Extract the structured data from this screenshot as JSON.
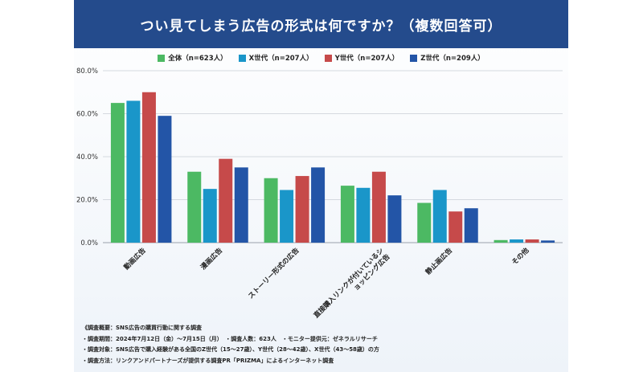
{
  "chart_data": {
    "type": "bar",
    "title": "つい見てしまう広告の形式は何ですか？（複数回答可）",
    "categories": [
      "動画広告",
      "漫画広告",
      "ストーリー形式の広告",
      "直接購入リンクが付いているショッピング広告",
      "静止画広告",
      "その他"
    ],
    "series": [
      {
        "name": "全体（n=623人）",
        "color": "#4cb963",
        "values": [
          65.0,
          33.0,
          30.0,
          26.5,
          18.5,
          1.2
        ]
      },
      {
        "name": "X世代（n=207人）",
        "color": "#1a96c9",
        "values": [
          66.0,
          25.0,
          24.5,
          25.5,
          24.5,
          1.5
        ]
      },
      {
        "name": "Y世代（n=207人）",
        "color": "#c64a4a",
        "values": [
          70.0,
          39.0,
          31.0,
          33.0,
          14.5,
          1.5
        ]
      },
      {
        "name": "Z世代（n=209人）",
        "color": "#2355a7",
        "values": [
          59.0,
          35.0,
          35.0,
          22.0,
          16.0,
          1.0
        ]
      }
    ],
    "ylim": [
      0,
      80
    ],
    "yticks": [
      "0.0%",
      "20.0%",
      "40.0%",
      "60.0%",
      "80.0%"
    ],
    "grid": true,
    "legend": "top-center"
  },
  "notes": [
    "《調査概要：SNS広告の購買行動に関する調査",
    "・調査期間：2024年7月12日（金）〜7月15日（月）　・調査人数：623人　・モニター提供元：ゼネラルリサーチ",
    "・調査対象：SNS広告で購入経験がある全国のZ世代（15〜27歳）、Y世代（28〜42歳）、X世代（43〜58歳）の方",
    "・調査方法：リンクアンドパートナーズが提供する調査PR「PRIZMA」によるインターネット調査"
  ]
}
